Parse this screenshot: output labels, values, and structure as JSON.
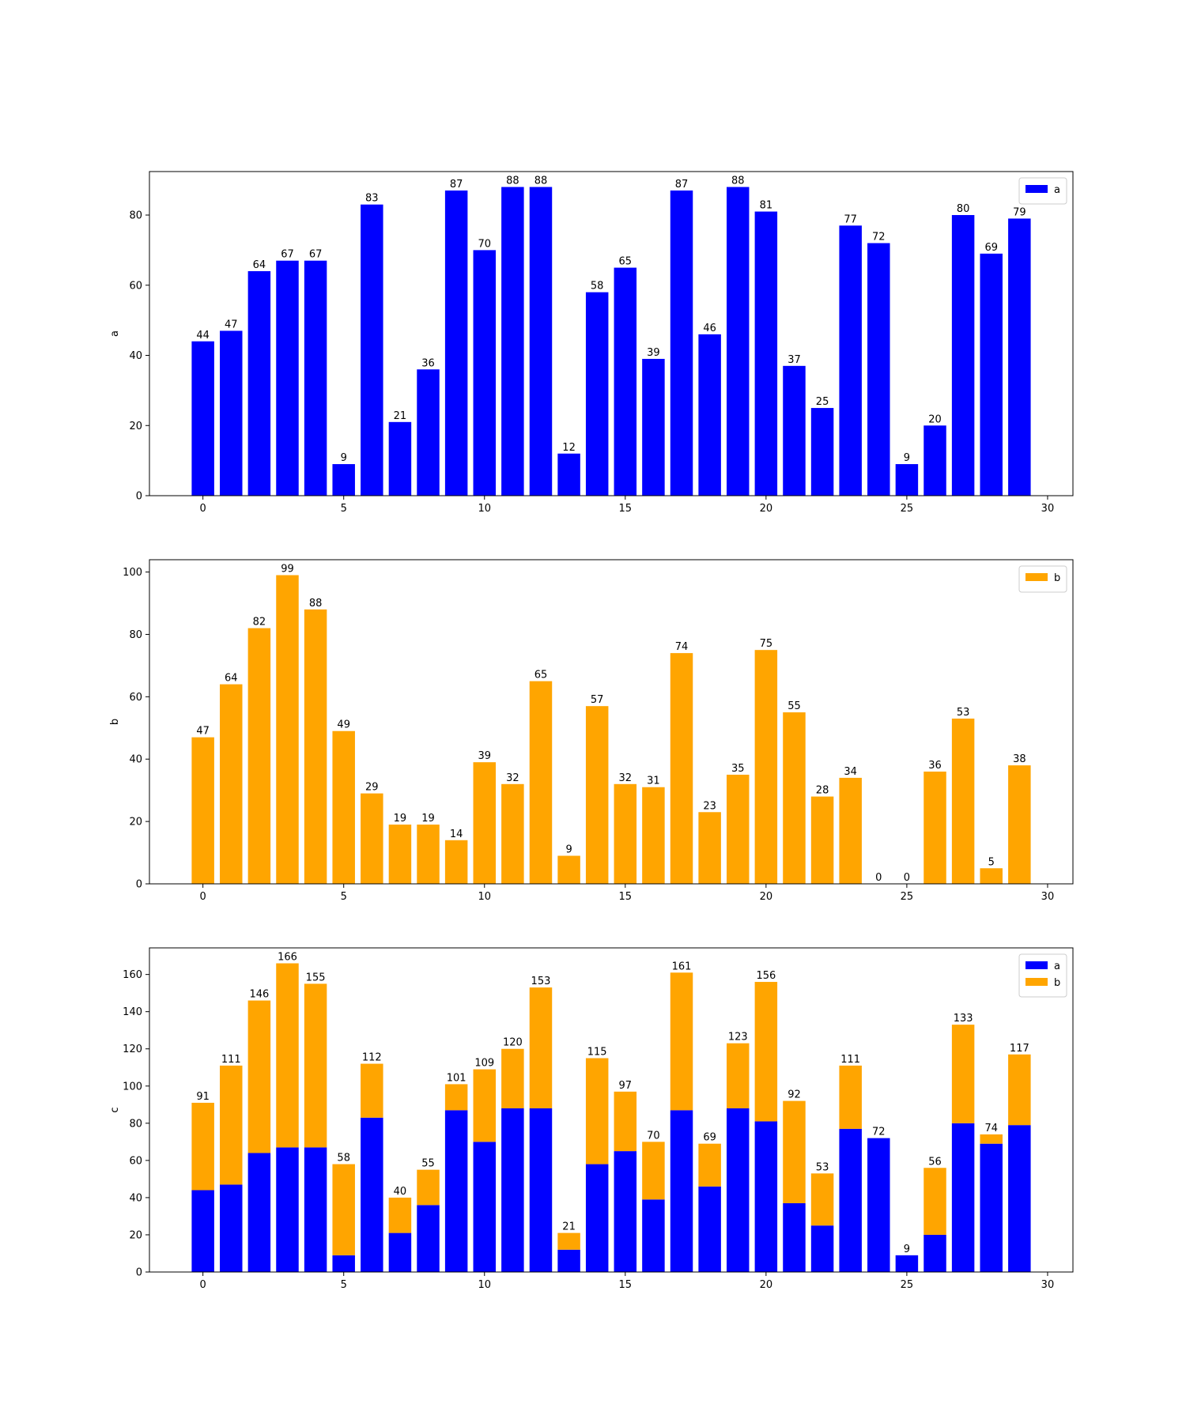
{
  "chart_data": [
    {
      "type": "bar",
      "x": [
        0,
        1,
        2,
        3,
        4,
        5,
        6,
        7,
        8,
        9,
        10,
        11,
        12,
        13,
        14,
        15,
        16,
        17,
        18,
        19,
        20,
        21,
        22,
        23,
        24,
        25,
        26,
        27,
        28,
        29
      ],
      "series": [
        {
          "name": "a",
          "color": "#0000ff",
          "values": [
            44,
            47,
            64,
            67,
            67,
            9,
            83,
            21,
            36,
            87,
            70,
            88,
            88,
            12,
            58,
            65,
            39,
            87,
            46,
            88,
            81,
            37,
            25,
            77,
            72,
            9,
            20,
            80,
            69,
            79
          ]
        }
      ],
      "bar_labels": [
        44,
        47,
        64,
        67,
        67,
        9,
        83,
        21,
        36,
        87,
        70,
        88,
        88,
        12,
        58,
        65,
        39,
        87,
        46,
        88,
        81,
        37,
        25,
        77,
        72,
        9,
        20,
        80,
        69,
        79
      ],
      "xlabel": "",
      "ylabel": "a",
      "xlim": [
        -1.9,
        30.9
      ],
      "ylim": [
        0,
        92.4
      ],
      "xticks": [
        0,
        5,
        10,
        15,
        20,
        25,
        30
      ],
      "yticks": [
        0,
        20,
        40,
        60,
        80
      ],
      "legend": "top-right",
      "grid": false
    },
    {
      "type": "bar",
      "x": [
        0,
        1,
        2,
        3,
        4,
        5,
        6,
        7,
        8,
        9,
        10,
        11,
        12,
        13,
        14,
        15,
        16,
        17,
        18,
        19,
        20,
        21,
        22,
        23,
        24,
        25,
        26,
        27,
        28,
        29
      ],
      "series": [
        {
          "name": "b",
          "color": "#ffa500",
          "values": [
            47,
            64,
            82,
            99,
            88,
            49,
            29,
            19,
            19,
            14,
            39,
            32,
            65,
            9,
            57,
            32,
            31,
            74,
            23,
            35,
            75,
            55,
            28,
            34,
            0,
            0,
            36,
            53,
            5,
            38
          ]
        }
      ],
      "bar_labels": [
        47,
        64,
        82,
        99,
        88,
        49,
        29,
        19,
        19,
        14,
        39,
        32,
        65,
        9,
        57,
        32,
        31,
        74,
        23,
        35,
        75,
        55,
        28,
        34,
        0,
        0,
        36,
        53,
        5,
        38
      ],
      "xlabel": "",
      "ylabel": "b",
      "xlim": [
        -1.9,
        30.9
      ],
      "ylim": [
        0,
        103.95
      ],
      "xticks": [
        0,
        5,
        10,
        15,
        20,
        25,
        30
      ],
      "yticks": [
        0,
        20,
        40,
        60,
        80,
        100
      ],
      "legend": "top-right",
      "grid": false
    },
    {
      "type": "bar",
      "stacked": true,
      "x": [
        0,
        1,
        2,
        3,
        4,
        5,
        6,
        7,
        8,
        9,
        10,
        11,
        12,
        13,
        14,
        15,
        16,
        17,
        18,
        19,
        20,
        21,
        22,
        23,
        24,
        25,
        26,
        27,
        28,
        29
      ],
      "series": [
        {
          "name": "a",
          "color": "#0000ff",
          "values": [
            44,
            47,
            64,
            67,
            67,
            9,
            83,
            21,
            36,
            87,
            70,
            88,
            88,
            12,
            58,
            65,
            39,
            87,
            46,
            88,
            81,
            37,
            25,
            77,
            72,
            9,
            20,
            80,
            69,
            79
          ]
        },
        {
          "name": "b",
          "color": "#ffa500",
          "values": [
            47,
            64,
            82,
            99,
            88,
            49,
            29,
            19,
            19,
            14,
            39,
            32,
            65,
            9,
            57,
            32,
            31,
            74,
            23,
            35,
            75,
            55,
            28,
            34,
            0,
            0,
            36,
            53,
            5,
            38
          ]
        }
      ],
      "bar_labels": [
        91,
        111,
        146,
        166,
        155,
        58,
        112,
        40,
        55,
        101,
        109,
        120,
        153,
        21,
        115,
        97,
        70,
        161,
        69,
        123,
        156,
        92,
        53,
        111,
        72,
        9,
        56,
        133,
        74,
        117
      ],
      "xlabel": "",
      "ylabel": "c",
      "xlim": [
        -1.9,
        30.9
      ],
      "ylim": [
        0,
        174.3
      ],
      "xticks": [
        0,
        5,
        10,
        15,
        20,
        25,
        30
      ],
      "yticks": [
        0,
        20,
        40,
        60,
        80,
        100,
        120,
        140,
        160
      ],
      "legend": "top-right",
      "grid": false
    }
  ]
}
